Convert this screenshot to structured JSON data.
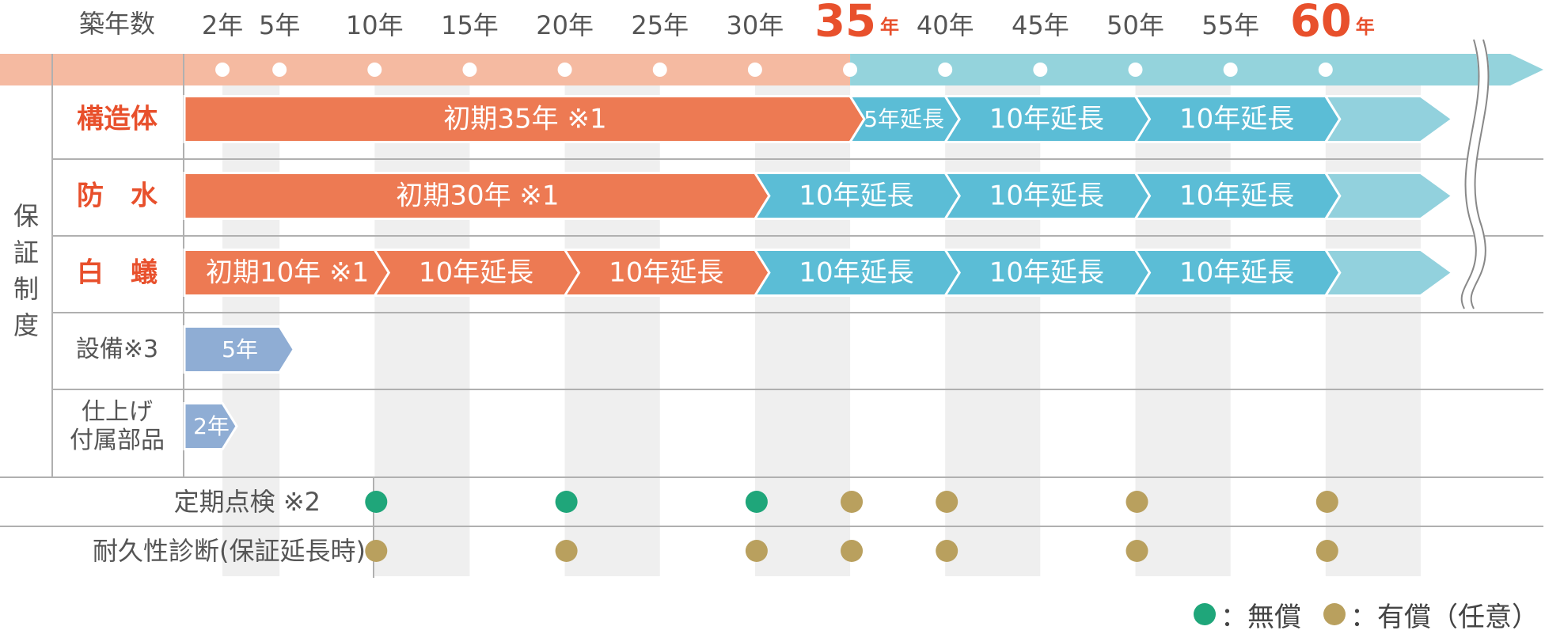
{
  "chart_data": {
    "type": "table",
    "header_label": "築年数",
    "ticks": [
      {
        "value": 2,
        "label": "2年",
        "highlight": false
      },
      {
        "value": 5,
        "label": "5年",
        "highlight": false
      },
      {
        "value": 10,
        "label": "10年",
        "highlight": false
      },
      {
        "value": 15,
        "label": "15年",
        "highlight": false
      },
      {
        "value": 20,
        "label": "20年",
        "highlight": false
      },
      {
        "value": 25,
        "label": "25年",
        "highlight": false
      },
      {
        "value": 30,
        "label": "30年",
        "highlight": false
      },
      {
        "value": 35,
        "label": "35",
        "unit": "年",
        "highlight": true
      },
      {
        "value": 40,
        "label": "40年",
        "highlight": false
      },
      {
        "value": 45,
        "label": "45年",
        "highlight": false
      },
      {
        "value": 50,
        "label": "50年",
        "highlight": false
      },
      {
        "value": 55,
        "label": "55年",
        "highlight": false
      },
      {
        "value": 60,
        "label": "60",
        "unit": "年",
        "highlight": true
      }
    ],
    "timeline_split_year": 35,
    "group_label": "保証制度",
    "rows": [
      {
        "label": "構造体",
        "label_color": "orange",
        "segments": [
          {
            "text": "初期35年 ※1",
            "start": 0,
            "end": 35,
            "color": "orange"
          },
          {
            "text": "5年延長",
            "start": 35,
            "end": 40,
            "color": "blue"
          },
          {
            "text": "10年延長",
            "start": 40,
            "end": 50,
            "color": "blue"
          },
          {
            "text": "10年延長",
            "start": 50,
            "end": 60,
            "color": "blue"
          },
          {
            "text": "",
            "start": 60,
            "end": 65,
            "color": "lightblue"
          }
        ]
      },
      {
        "label": "防　水",
        "label_color": "orange",
        "segments": [
          {
            "text": "初期30年 ※1",
            "start": 0,
            "end": 30,
            "color": "orange"
          },
          {
            "text": "10年延長",
            "start": 30,
            "end": 40,
            "color": "blue"
          },
          {
            "text": "10年延長",
            "start": 40,
            "end": 50,
            "color": "blue"
          },
          {
            "text": "10年延長",
            "start": 50,
            "end": 60,
            "color": "blue"
          },
          {
            "text": "",
            "start": 60,
            "end": 65,
            "color": "lightblue"
          }
        ]
      },
      {
        "label": "白　蟻",
        "label_color": "orange",
        "segments": [
          {
            "text": "初期10年 ※1",
            "start": 0,
            "end": 10,
            "color": "orange"
          },
          {
            "text": "10年延長",
            "start": 10,
            "end": 20,
            "color": "orange"
          },
          {
            "text": "10年延長",
            "start": 20,
            "end": 30,
            "color": "orange"
          },
          {
            "text": "10年延長",
            "start": 30,
            "end": 40,
            "color": "blue"
          },
          {
            "text": "10年延長",
            "start": 40,
            "end": 50,
            "color": "blue"
          },
          {
            "text": "10年延長",
            "start": 50,
            "end": 60,
            "color": "blue"
          },
          {
            "text": "",
            "start": 60,
            "end": 65,
            "color": "lightblue"
          }
        ]
      },
      {
        "label": "設備※3",
        "label_color": "gray",
        "segments": [
          {
            "text": "5年",
            "start": 0,
            "end": 5,
            "color": "slate"
          }
        ]
      },
      {
        "label": "仕上げ\n付属部品",
        "label_color": "gray",
        "segments": [
          {
            "text": "2年",
            "start": 0,
            "end": 2,
            "color": "slate"
          }
        ]
      }
    ],
    "inspections": [
      {
        "label": "定期点検 ※2",
        "points": [
          {
            "year": 10,
            "type": "free"
          },
          {
            "year": 20,
            "type": "free"
          },
          {
            "year": 30,
            "type": "free"
          },
          {
            "year": 35,
            "type": "paid"
          },
          {
            "year": 40,
            "type": "paid"
          },
          {
            "year": 50,
            "type": "paid"
          },
          {
            "year": 60,
            "type": "paid"
          }
        ]
      },
      {
        "label": "耐久性診断(保証延長時)",
        "points": [
          {
            "year": 10,
            "type": "paid"
          },
          {
            "year": 20,
            "type": "paid"
          },
          {
            "year": 30,
            "type": "paid"
          },
          {
            "year": 35,
            "type": "paid"
          },
          {
            "year": 40,
            "type": "paid"
          },
          {
            "year": 50,
            "type": "paid"
          },
          {
            "year": 60,
            "type": "paid"
          }
        ]
      }
    ],
    "legend": [
      {
        "label": "：無償",
        "color": "#1fa67a"
      },
      {
        "label": "：有償（任意）",
        "color": "#b9a05e"
      }
    ],
    "colors": {
      "orange": "#ed7a53",
      "blue": "#5bbdd6",
      "lightblue": "#92d1dd",
      "slate": "#8fadd4",
      "timeline_orange": "#f5baa1",
      "timeline_blue": "#94d3dc",
      "label_orange": "#e8502c",
      "label_gray": "#555555",
      "highlight": "#e8502c",
      "stripe": "#efefef",
      "grid": "#b0b0b0",
      "free": "#1fa67a",
      "paid": "#b9a05e"
    }
  }
}
